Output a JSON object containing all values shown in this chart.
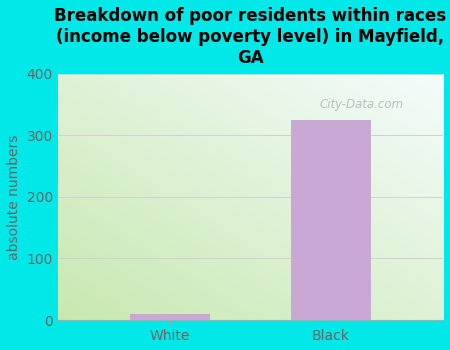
{
  "title": "Breakdown of poor residents within races\n(income below poverty level) in Mayfield,\nGA",
  "categories": [
    "White",
    "Black"
  ],
  "values": [
    10,
    325
  ],
  "bar_color": "#c9a8d4",
  "background_color": "#00e8e8",
  "ylabel": "absolute numbers",
  "ylim": [
    0,
    400
  ],
  "yticks": [
    0,
    100,
    200,
    300,
    400
  ],
  "tick_color": "#666666",
  "title_fontsize": 12,
  "ylabel_fontsize": 10,
  "tick_fontsize": 10,
  "grid_color": "#d0d0d0",
  "watermark_text": "City-Data.com",
  "plot_bg_left_bottom": "#c8e8b0",
  "plot_bg_right_top": "#f0f8f8"
}
